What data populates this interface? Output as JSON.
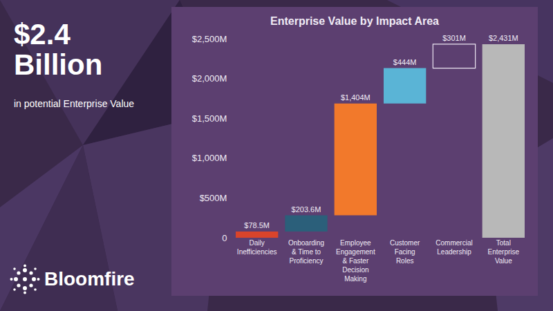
{
  "headline": [
    "$2.4",
    "Billion"
  ],
  "subheadline": "in potential Enterprise Value",
  "brand": "Bloomfire",
  "chart_data": {
    "type": "waterfall",
    "title": "Enterprise Value by Impact Area",
    "categories": [
      "Daily Inefficiencies",
      "Onboarding & Time to Proficiency",
      "Employee Engagement & Faster Decision Making",
      "Customer Facing Roles",
      "Commercial Leadership",
      "Total Enterprise Value"
    ],
    "values": [
      78.5,
      203.6,
      1404,
      444,
      301,
      2431
    ],
    "value_labels": [
      "$78.5M",
      "$203.6M",
      "$1,404M",
      "$444M",
      "$301M",
      "$2,431M"
    ],
    "colors": [
      "#d9442b",
      "#2b5f7a",
      "#f2792b",
      "#5ab4d6",
      "none",
      "#b8b8b8"
    ],
    "ylim": [
      0,
      2500
    ],
    "yticks": [
      0,
      {
        "value": 500,
        "label": "$500M"
      },
      {
        "value": 1000,
        "label": "$1,000M"
      },
      {
        "value": 1500,
        "label": "$1,500M"
      },
      {
        "value": 2000,
        "label": "$2,000M"
      },
      {
        "value": 2500,
        "label": "$2,500M"
      }
    ],
    "grid": false,
    "data_labels": true
  }
}
